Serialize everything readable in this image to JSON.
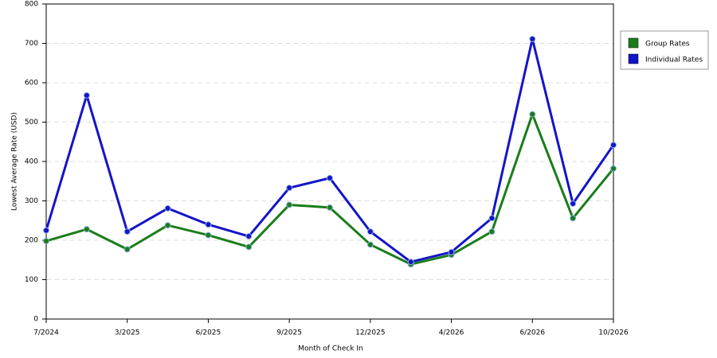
{
  "chart_data": {
    "type": "line",
    "x_label": "Month of Check In",
    "y_label": "Lowest Average Rate (USD)",
    "categories": [
      "7/2024",
      null,
      "3/2025",
      null,
      "6/2025",
      null,
      "9/2025",
      null,
      "12/2025",
      null,
      "4/2026",
      null,
      "6/2026",
      null,
      "10/2026"
    ],
    "series": [
      {
        "name": "Group Rates",
        "color": "#1a7d1a",
        "values": [
          198,
          228,
          177,
          238,
          213,
          183,
          290,
          283,
          189,
          139,
          163,
          222,
          520,
          256,
          382
        ]
      },
      {
        "name": "Individual Rates",
        "color": "#1414c8",
        "values": [
          225,
          568,
          222,
          281,
          240,
          210,
          333,
          358,
          222,
          145,
          170,
          256,
          711,
          293,
          442
        ]
      }
    ],
    "ylim": [
      0,
      800
    ],
    "yticks": [
      0,
      100,
      200,
      300,
      400,
      500,
      600,
      700,
      800
    ],
    "grid": true,
    "legend": "right"
  }
}
